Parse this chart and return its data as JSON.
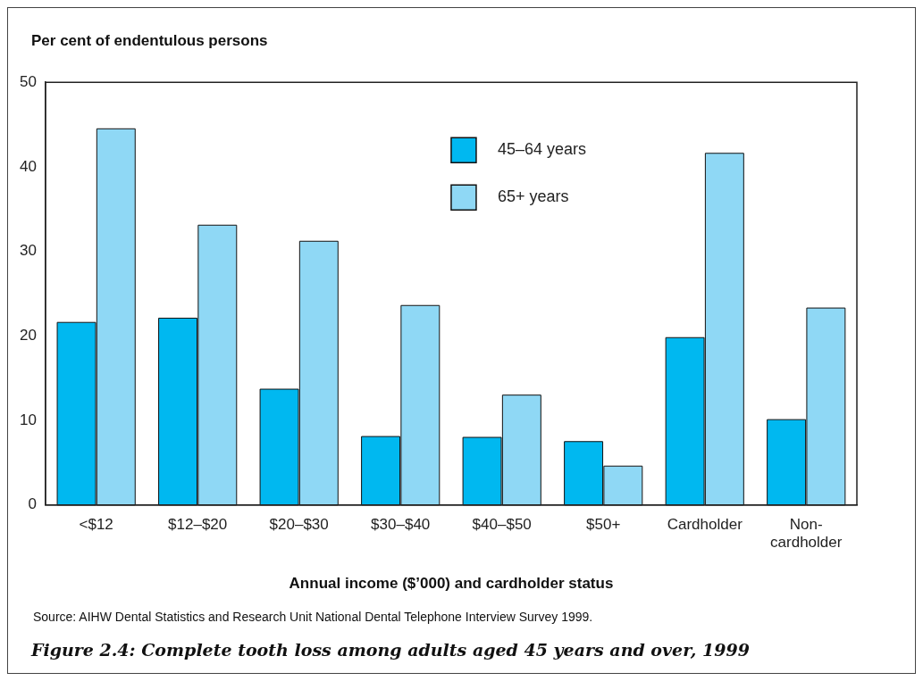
{
  "chart_data": {
    "type": "bar",
    "title": "Figure 2.4: Complete tooth loss among adults aged 45 years and over, 1999",
    "ylabel": "Per cent of endentulous persons",
    "xlabel": "Annual income ($’000) and cardholder status",
    "categories": [
      "<$12",
      "$12–$20",
      "$20–$30",
      "$30–$40",
      "$40–$50",
      "$50+",
      "Cardholder",
      "Non-\ncardholder"
    ],
    "series": [
      {
        "name": "45–64 years",
        "color": "#00b8f0",
        "values": [
          21.6,
          22.1,
          13.7,
          8.1,
          8.0,
          7.5,
          19.8,
          10.1
        ]
      },
      {
        "name": "65+ years",
        "color": "#8fd8f5",
        "values": [
          44.5,
          33.1,
          31.2,
          23.6,
          13.0,
          4.6,
          41.6,
          23.3
        ]
      }
    ],
    "ylim": [
      0,
      50
    ],
    "yticks": [
      0,
      10,
      20,
      30,
      40,
      50
    ],
    "grid": false,
    "legend": "top right",
    "annotations": [
      "Source: AIHW Dental Statistics and Research Unit National Dental Telephone Interview Survey 1999."
    ]
  }
}
